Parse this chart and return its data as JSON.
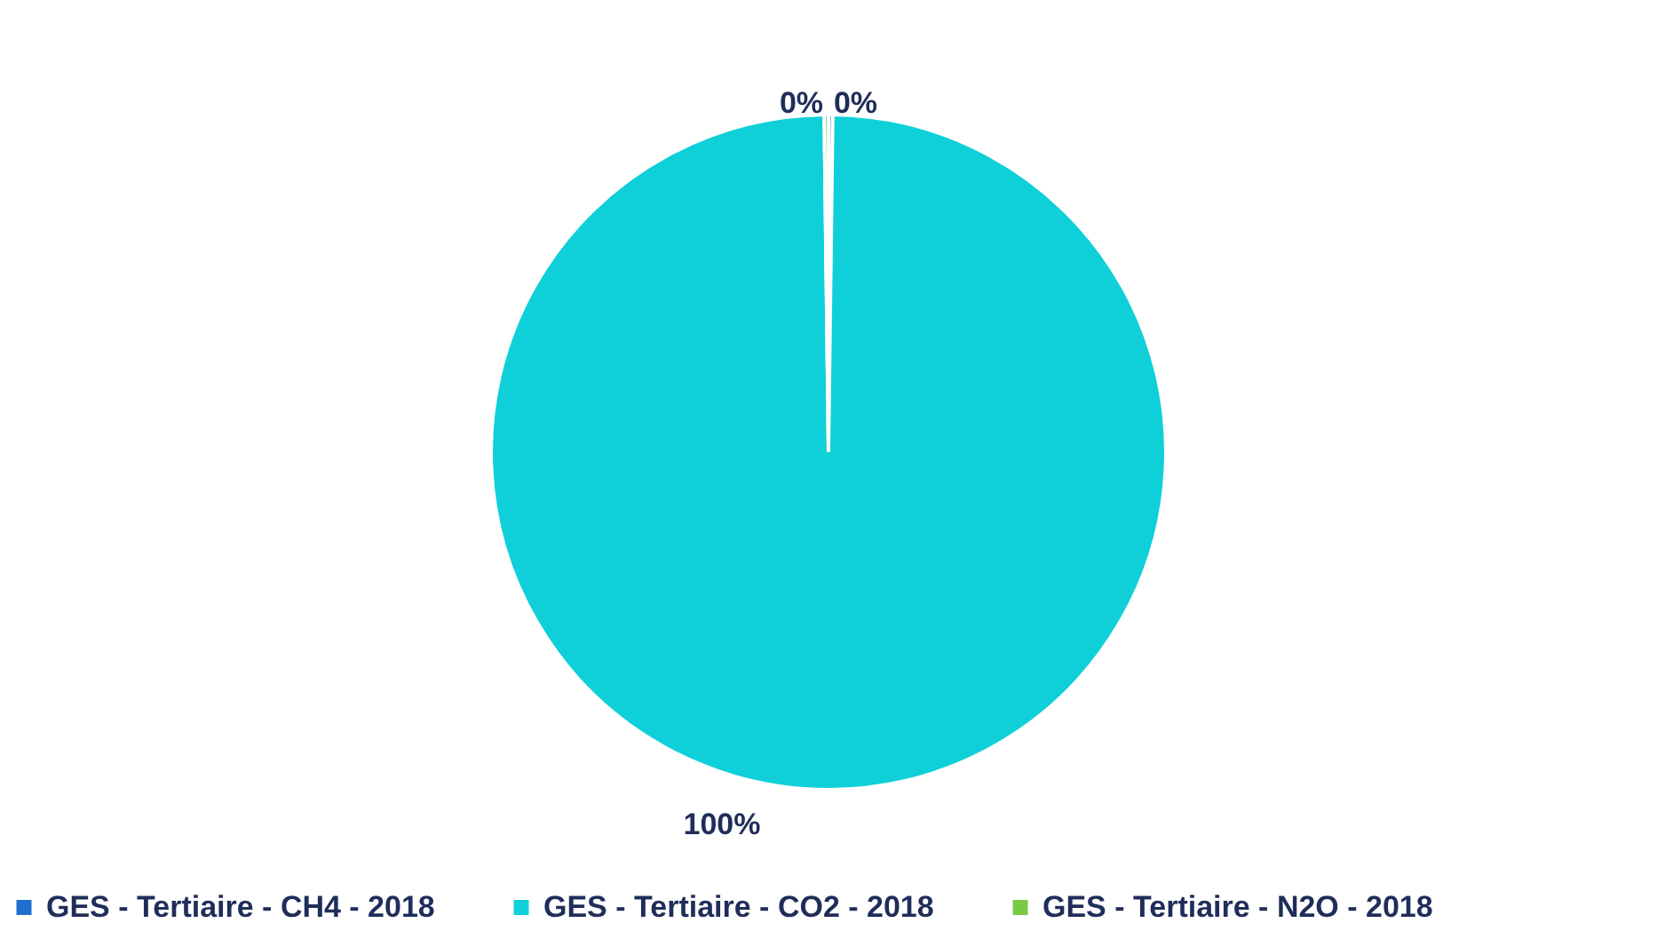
{
  "chart_data": {
    "type": "pie",
    "categories": [
      "GES - Tertiaire - CH4 - 2018",
      "GES - Tertiaire - CO2 - 2018",
      "GES - Tertiaire - N2O - 2018"
    ],
    "values": [
      0.2,
      99.6,
      0.2
    ],
    "value_labels": [
      "0%",
      "100%",
      "0%"
    ],
    "colors": [
      "#1f6fd0",
      "#0fd0d8",
      "#7ac943"
    ],
    "legend": "bottom"
  }
}
